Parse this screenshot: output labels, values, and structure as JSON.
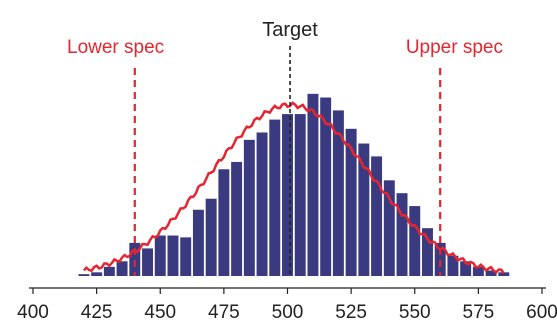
{
  "chart_data": {
    "type": "bar",
    "title": "",
    "xlabel": "",
    "ylabel": "",
    "xlim": [
      400,
      600
    ],
    "ylim": [
      0,
      1
    ],
    "x_ticks": [
      400,
      425,
      450,
      475,
      500,
      525,
      550,
      575,
      600
    ],
    "bar_width": 5,
    "bar_color": "#3a3a80",
    "curve_color": "#e52530",
    "spec_color": "#e52530",
    "target_color": "#222222",
    "bars": [
      {
        "x": 420,
        "value": 0.01
      },
      {
        "x": 425,
        "value": 0.02
      },
      {
        "x": 430,
        "value": 0.05
      },
      {
        "x": 435,
        "value": 0.08
      },
      {
        "x": 440,
        "value": 0.18
      },
      {
        "x": 445,
        "value": 0.15
      },
      {
        "x": 450,
        "value": 0.22
      },
      {
        "x": 455,
        "value": 0.22
      },
      {
        "x": 460,
        "value": 0.21
      },
      {
        "x": 465,
        "value": 0.36
      },
      {
        "x": 470,
        "value": 0.42
      },
      {
        "x": 475,
        "value": 0.58
      },
      {
        "x": 480,
        "value": 0.62
      },
      {
        "x": 485,
        "value": 0.74
      },
      {
        "x": 490,
        "value": 0.78
      },
      {
        "x": 495,
        "value": 0.85
      },
      {
        "x": 500,
        "value": 0.88
      },
      {
        "x": 505,
        "value": 0.88
      },
      {
        "x": 510,
        "value": 0.99
      },
      {
        "x": 515,
        "value": 0.97
      },
      {
        "x": 520,
        "value": 0.9
      },
      {
        "x": 525,
        "value": 0.8
      },
      {
        "x": 530,
        "value": 0.72
      },
      {
        "x": 535,
        "value": 0.65
      },
      {
        "x": 540,
        "value": 0.52
      },
      {
        "x": 545,
        "value": 0.45
      },
      {
        "x": 550,
        "value": 0.38
      },
      {
        "x": 555,
        "value": 0.26
      },
      {
        "x": 560,
        "value": 0.18
      },
      {
        "x": 565,
        "value": 0.11
      },
      {
        "x": 570,
        "value": 0.08
      },
      {
        "x": 575,
        "value": 0.05
      },
      {
        "x": 580,
        "value": 0.03
      },
      {
        "x": 585,
        "value": 0.02
      }
    ],
    "fit_curve": {
      "type": "normal",
      "mean": 501,
      "sd": 31,
      "peak": 0.93,
      "x_range": [
        420,
        585
      ]
    },
    "lines": [
      {
        "name": "Lower spec",
        "x": 440,
        "style": "dashed",
        "color": "#e52530"
      },
      {
        "name": "Target",
        "x": 501,
        "style": "dashed",
        "color": "#222222"
      },
      {
        "name": "Upper spec",
        "x": 560,
        "style": "dashed",
        "color": "#e52530"
      }
    ]
  }
}
